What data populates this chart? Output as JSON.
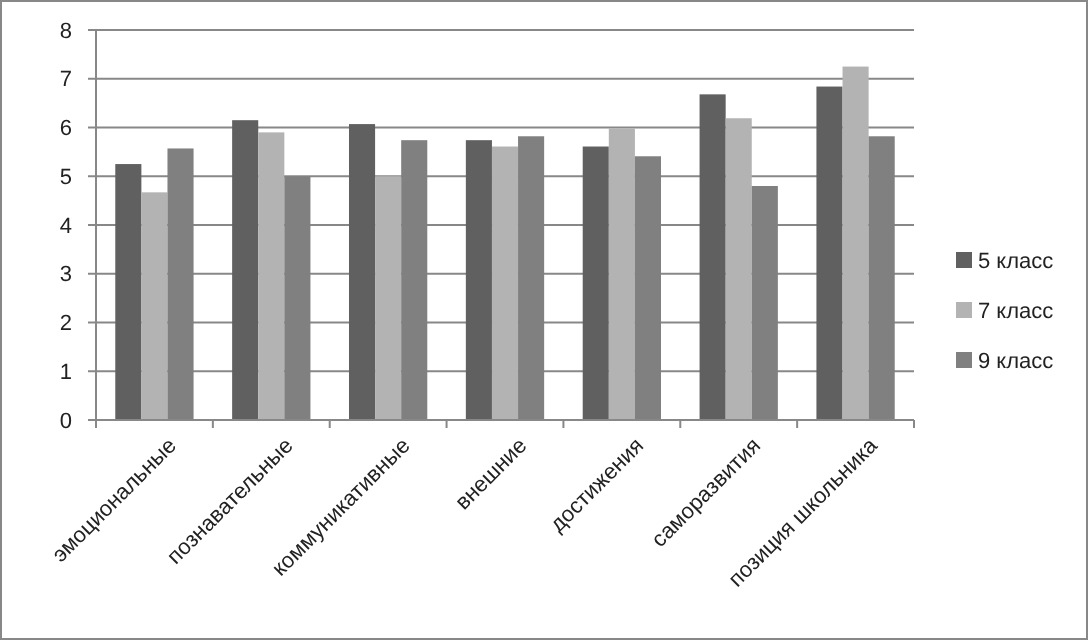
{
  "chart_data": {
    "type": "bar",
    "categories": [
      "эмоциональные",
      "познавательные",
      "коммуникативные",
      "внешние",
      "достижения",
      "саморазвития",
      "позиция школьника"
    ],
    "series": [
      {
        "name": "5 класс",
        "color": "#606060",
        "values": [
          5.25,
          6.15,
          6.07,
          5.74,
          5.61,
          6.68,
          6.84
        ]
      },
      {
        "name": "7 класс",
        "color": "#b3b3b3",
        "values": [
          4.67,
          5.9,
          5.0,
          5.61,
          5.98,
          6.19,
          7.25
        ]
      },
      {
        "name": "9 класс",
        "color": "#808080",
        "values": [
          5.57,
          5.0,
          5.74,
          5.82,
          5.41,
          4.8,
          5.82
        ]
      }
    ],
    "ylim": [
      0,
      8
    ],
    "yticks": [
      0,
      1,
      2,
      3,
      4,
      5,
      6,
      7,
      8
    ],
    "grid": "y",
    "legend": "right"
  }
}
